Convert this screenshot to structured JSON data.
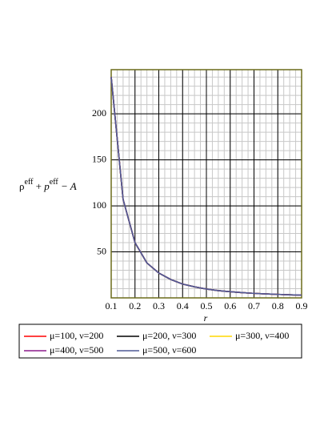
{
  "chart_data": {
    "type": "line",
    "x_label": "r",
    "y_label": [
      "ρ",
      "eff",
      " + ",
      "p",
      "eff",
      " − A"
    ],
    "x": [
      0.1,
      0.15,
      0.2,
      0.25,
      0.3,
      0.35,
      0.4,
      0.45,
      0.5,
      0.55,
      0.6,
      0.65,
      0.7,
      0.75,
      0.8,
      0.85,
      0.9
    ],
    "series": [
      {
        "name": "μ=100, ν=200",
        "color": "#ff0000",
        "values": [
          240,
          107,
          60,
          38,
          27,
          20,
          15,
          12,
          9.6,
          7.9,
          6.7,
          5.7,
          4.9,
          4.3,
          3.8,
          3.3,
          3.0
        ]
      },
      {
        "name": "μ=200, ν=300",
        "color": "#000000",
        "values": [
          240,
          107,
          60,
          38,
          27,
          20,
          15,
          12,
          9.6,
          7.9,
          6.7,
          5.7,
          4.9,
          4.3,
          3.8,
          3.3,
          3.0
        ]
      },
      {
        "name": "μ=300, ν=400",
        "color": "#ffd700",
        "values": [
          240,
          107,
          60,
          38,
          27,
          20,
          15,
          12,
          9.6,
          7.9,
          6.7,
          5.7,
          4.9,
          4.3,
          3.8,
          3.3,
          3.0
        ]
      },
      {
        "name": "μ=400, ν=500",
        "color": "#8b1a8b",
        "values": [
          240,
          107,
          60,
          38,
          27,
          20,
          15,
          12,
          9.6,
          7.9,
          6.7,
          5.7,
          4.9,
          4.3,
          3.8,
          3.3,
          3.0
        ]
      },
      {
        "name": "μ=500, ν=600",
        "color": "#4f5a96",
        "values": [
          240,
          107,
          60,
          38,
          27,
          20,
          15,
          12,
          9.6,
          7.9,
          6.7,
          5.7,
          4.9,
          4.3,
          3.8,
          3.3,
          3.0
        ]
      }
    ],
    "xlim": [
      0.1,
      0.9
    ],
    "ylim": [
      0,
      248
    ],
    "xticks": [
      0.1,
      0.2,
      0.3,
      0.4,
      0.5,
      0.6,
      0.7,
      0.8,
      0.9
    ],
    "yticks": [
      50,
      100,
      150,
      200
    ],
    "grid": true,
    "minor_grid_step": [
      0.025,
      10
    ],
    "legend": "bottom"
  }
}
